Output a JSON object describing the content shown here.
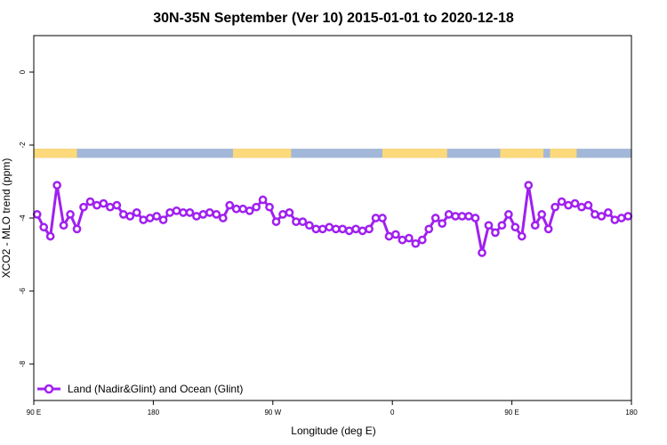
{
  "chart_data": {
    "type": "line",
    "title": "30N-35N September (Ver 10)   2015-01-01 to 2020-12-18",
    "xlabel": "Longitude (deg E)",
    "ylabel": "XCO2 - MLO trend (ppm)",
    "xlim": [
      90,
      450
    ],
    "ylim": [
      -9.0,
      1.0
    ],
    "x_ticks": [
      {
        "value": 90,
        "label": "90 E"
      },
      {
        "value": 162,
        "label": "180"
      },
      {
        "value": 234,
        "label": "90 W"
      },
      {
        "value": 306,
        "label": "0"
      },
      {
        "value": 378,
        "label": "90 E"
      },
      {
        "value": 450,
        "label": "180"
      }
    ],
    "y_ticks": [
      {
        "value": 0,
        "label": "0"
      },
      {
        "value": -2,
        "label": "-2"
      },
      {
        "value": -4,
        "label": "-4"
      },
      {
        "value": -6,
        "label": "-6"
      },
      {
        "value": -8,
        "label": "-8"
      }
    ],
    "land_ocean_band": {
      "y_range": [
        -2.35,
        -2.1
      ],
      "ocean_color": "#a3b8d8",
      "land_color": "#fcd97a",
      "land_segments": [
        [
          90,
          116
        ],
        [
          210,
          245
        ],
        [
          300,
          339
        ],
        [
          371,
          397
        ],
        [
          401,
          413
        ],
        [
          412,
          417
        ]
      ]
    },
    "series": [
      {
        "name": "Land (Nadir&Glint) and Ocean (Glint)",
        "color": "#a020f0",
        "x": [
          92,
          96,
          100,
          104,
          108,
          112,
          116,
          120,
          124,
          128,
          132,
          136,
          140,
          144,
          148,
          152,
          156,
          160,
          164,
          168,
          172,
          176,
          180,
          184,
          188,
          192,
          196,
          200,
          204,
          208,
          212,
          216,
          220,
          224,
          228,
          232,
          236,
          240,
          244,
          248,
          252,
          256,
          260,
          264,
          268,
          272,
          276,
          280,
          284,
          288,
          292,
          296,
          300,
          304,
          308,
          312,
          316,
          320,
          324,
          328,
          332,
          336,
          340,
          344,
          348,
          352,
          356,
          360,
          364,
          368,
          372,
          376,
          380,
          384,
          388,
          392,
          396,
          400,
          404,
          408,
          412,
          416,
          420,
          424,
          428,
          432,
          436,
          440,
          444,
          448
        ],
        "values": [
          -3.9,
          -4.25,
          -4.5,
          -3.1,
          -4.2,
          -3.9,
          -4.3,
          -3.7,
          -3.55,
          -3.65,
          -3.6,
          -3.7,
          -3.65,
          -3.9,
          -3.95,
          -3.85,
          -4.05,
          -4.0,
          -3.95,
          -4.05,
          -3.85,
          -3.8,
          -3.85,
          -3.85,
          -3.95,
          -3.9,
          -3.85,
          -3.9,
          -4.0,
          -3.65,
          -3.75,
          -3.75,
          -3.8,
          -3.7,
          -3.5,
          -3.7,
          -4.1,
          -3.9,
          -3.85,
          -4.1,
          -4.1,
          -4.2,
          -4.3,
          -4.3,
          -4.25,
          -4.3,
          -4.3,
          -4.35,
          -4.3,
          -4.35,
          -4.3,
          -4.0,
          -4.0,
          -4.5,
          -4.45,
          -4.6,
          -4.55,
          -4.7,
          -4.6,
          -4.3,
          -4.0,
          -4.15,
          -3.9,
          -3.95,
          -3.95,
          -3.95,
          -4.0,
          -4.95,
          -4.2,
          -4.4,
          -4.2,
          -3.9,
          -4.25,
          -4.5,
          -3.1,
          -4.2,
          -3.9,
          -4.3,
          -3.7,
          -3.55,
          -3.65,
          -3.6,
          -3.7,
          -3.65,
          -3.9,
          -3.95,
          -3.85,
          -4.05,
          -4.0,
          -3.95
        ]
      }
    ],
    "legend": {
      "position": "bottom-left",
      "entries": [
        "Land (Nadir&Glint) and Ocean (Glint)"
      ]
    },
    "grid": false
  }
}
